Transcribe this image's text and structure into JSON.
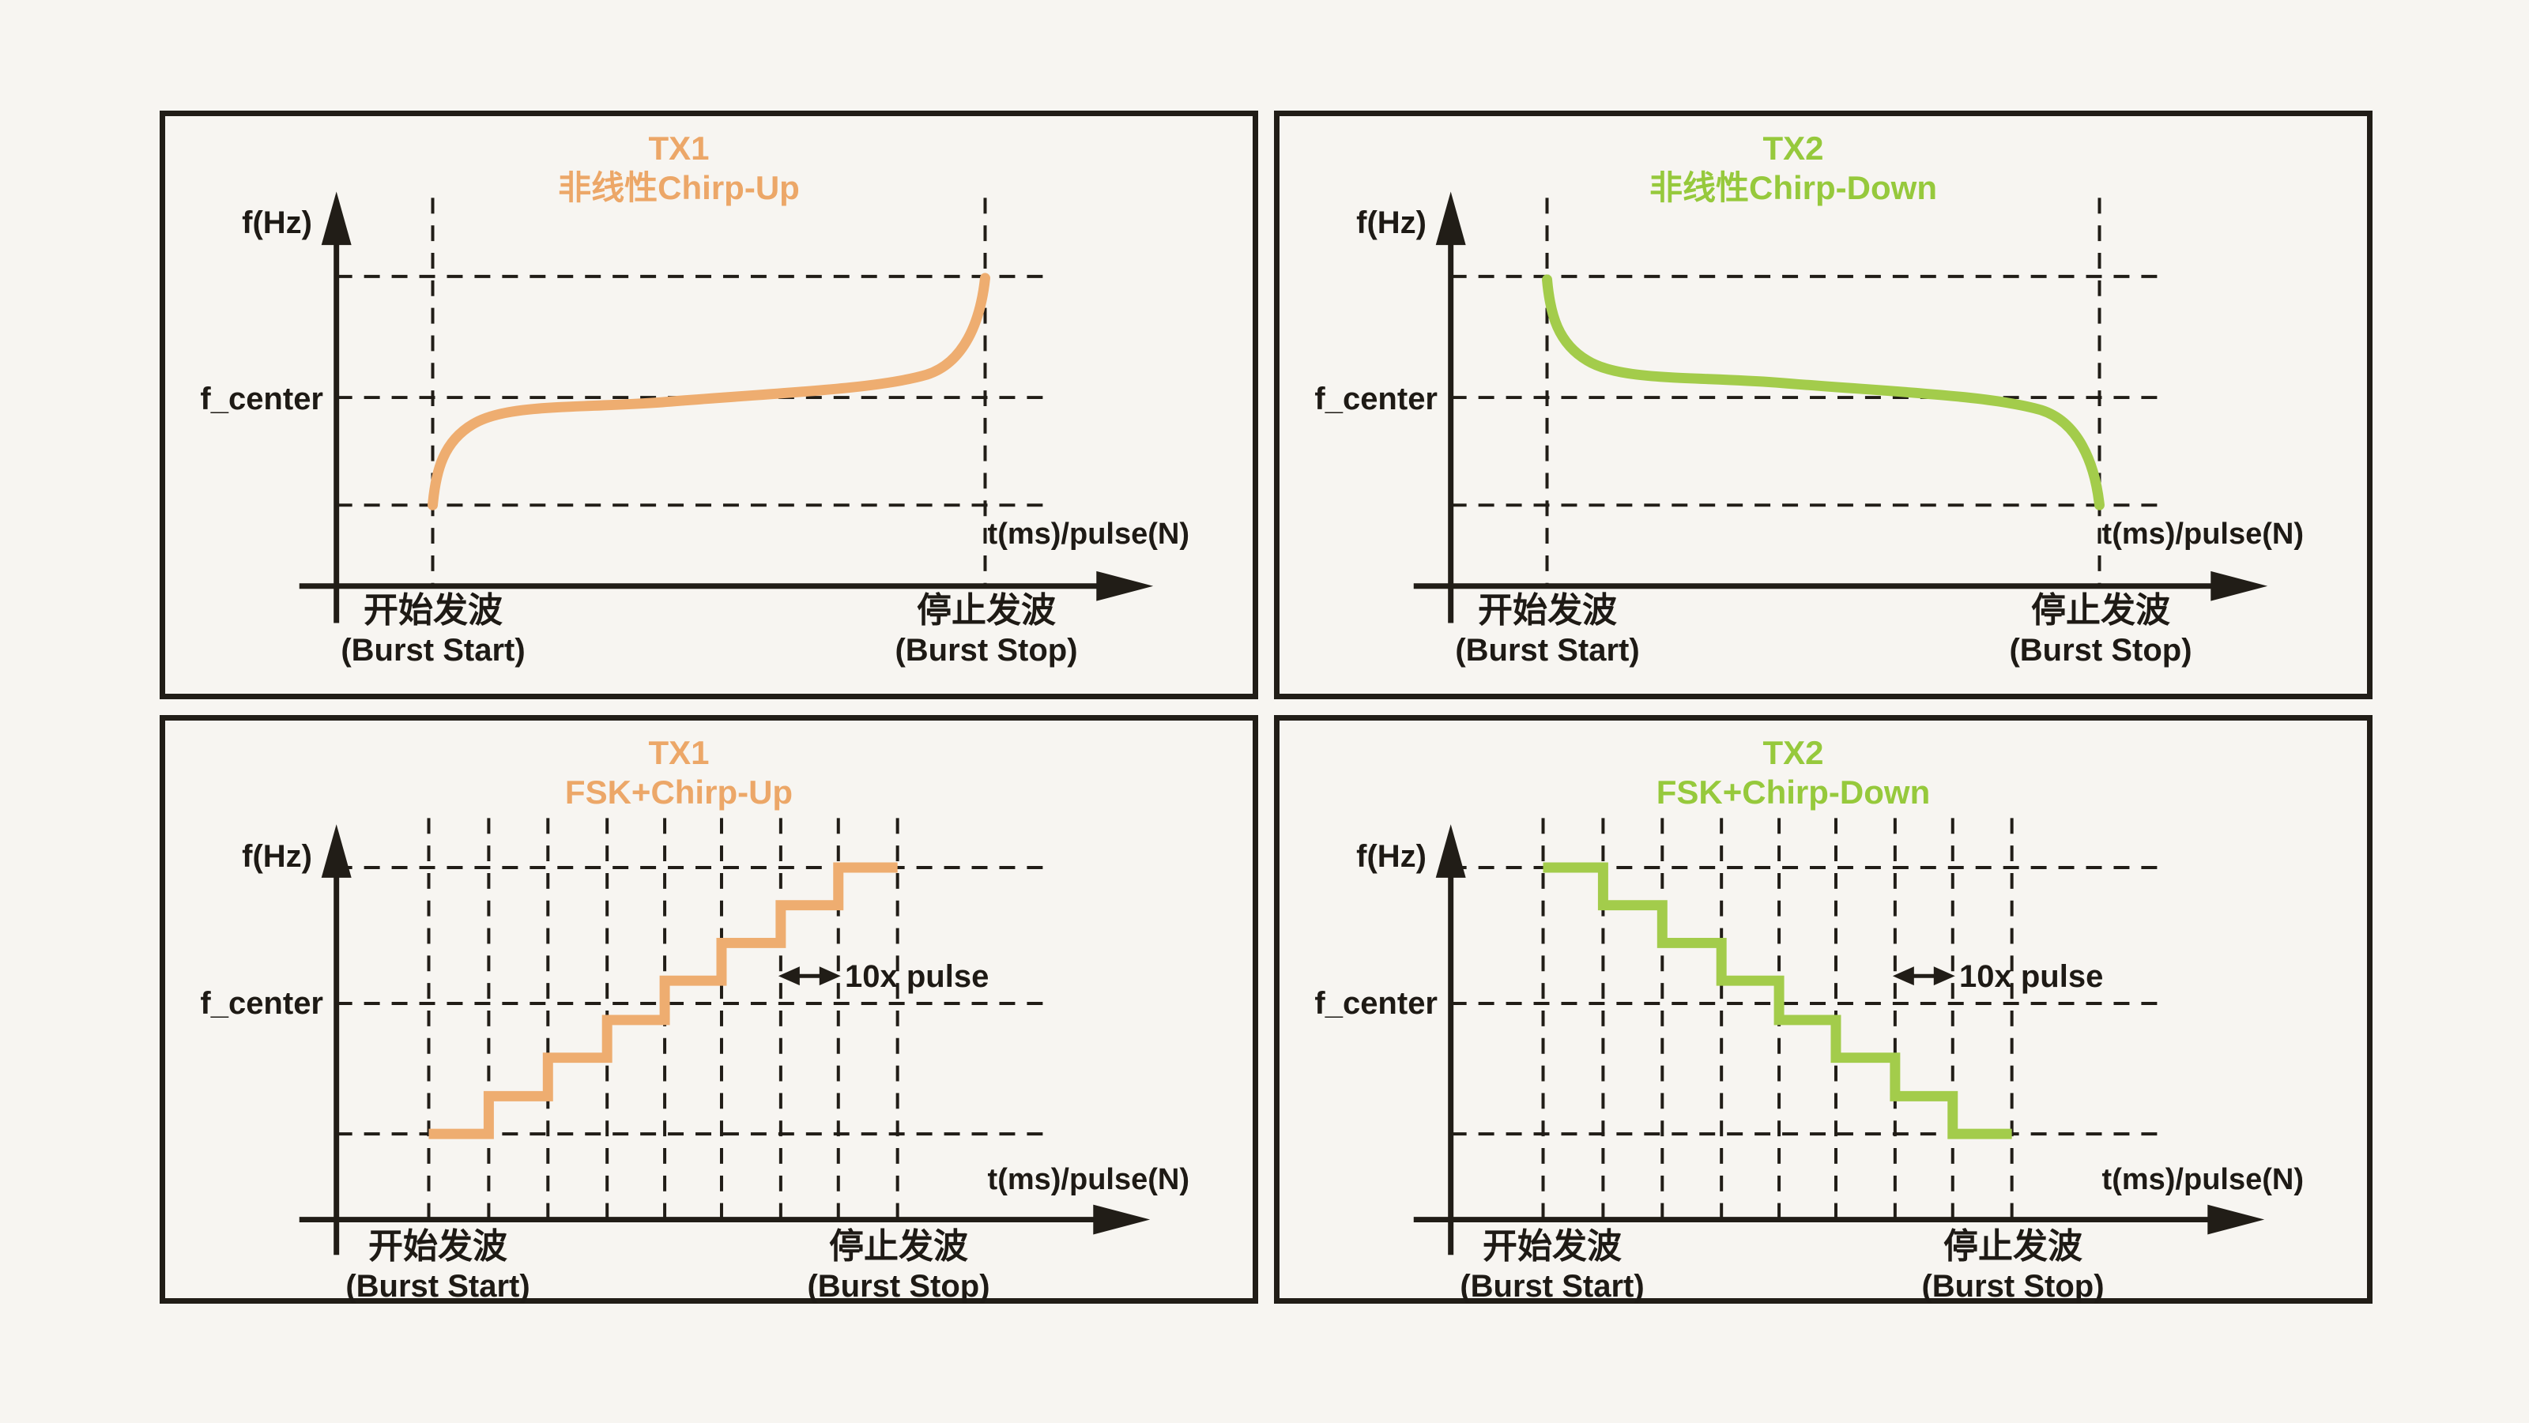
{
  "figure": {
    "background_color": "#f7f5f1",
    "ink_color": "#211d17",
    "description": "2x2 grid of radar transmit waveform diagrams (frequency vs time/pulse)"
  },
  "axis": {
    "y_label": "f(Hz)",
    "x_label": "t(ms)/pulse(N)",
    "f_center_label": "f_center"
  },
  "burst": {
    "start_zh": "开始发波",
    "start_en": "(Burst Start)",
    "stop_zh": "停止发波",
    "stop_en": "(Burst Stop)"
  },
  "panels": [
    {
      "position": "top-left",
      "channel": "TX1",
      "mode": "非线性Chirp-Up",
      "waveform": "nonlinear-chirp-up",
      "line_color": "#eead70",
      "title_color": "#eca768",
      "direction": "up",
      "shape": "nonlinear s-curve from low frequency at burst start to high frequency at burst stop, crossing f_center mid-burst"
    },
    {
      "position": "top-right",
      "channel": "TX2",
      "mode": "非线性Chirp-Down",
      "waveform": "nonlinear-chirp-down",
      "line_color": "#a3cc4b",
      "title_color": "#96c93c",
      "direction": "down",
      "shape": "nonlinear s-curve from high frequency at burst start to low frequency at burst stop, crossing f_center mid-burst"
    },
    {
      "position": "bottom-left",
      "channel": "TX1",
      "mode": "FSK+Chirp-Up",
      "waveform": "fsk-chirp-up",
      "line_color": "#eead70",
      "title_color": "#eca768",
      "direction": "up",
      "annotation": "10x pulse",
      "steps": 8,
      "pulses_per_step": 10,
      "shape": "ascending frequency staircase of 8 steps from bottom gridline at burst start to top gridline at burst stop"
    },
    {
      "position": "bottom-right",
      "channel": "TX2",
      "mode": "FSK+Chirp-Down",
      "waveform": "fsk-chirp-down",
      "line_color": "#a3cc4b",
      "title_color": "#96c93c",
      "direction": "down",
      "annotation": "10x pulse",
      "steps": 8,
      "pulses_per_step": 10,
      "shape": "descending frequency staircase of 8 steps from top gridline at burst start to bottom gridline at burst stop"
    }
  ]
}
